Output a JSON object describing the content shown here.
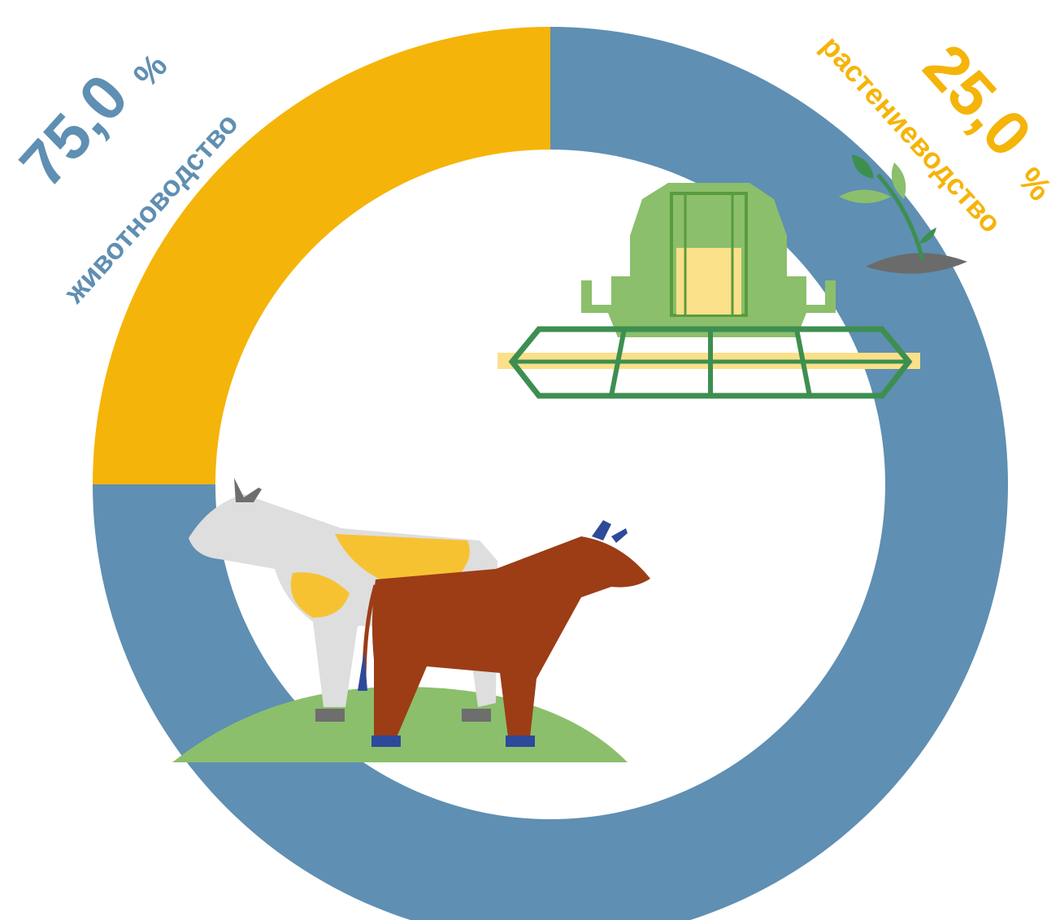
{
  "chart_data": {
    "type": "pie",
    "donut": true,
    "slices": [
      {
        "value_label": "75,0",
        "percent_sign": "%",
        "label": "животноводство",
        "value": 75.0,
        "color": "#5f8fb2"
      },
      {
        "value_label": "25,0",
        "percent_sign": "%",
        "label": "растениеводство",
        "value": 25.0,
        "color": "#f5b409"
      }
    ],
    "start_angle_deg": 0,
    "direction": "clockwise",
    "legend": "none"
  },
  "illustrations": {
    "cows": "cows-on-hill",
    "combine": "combine-harvester",
    "sprout": "plant-sprout"
  }
}
